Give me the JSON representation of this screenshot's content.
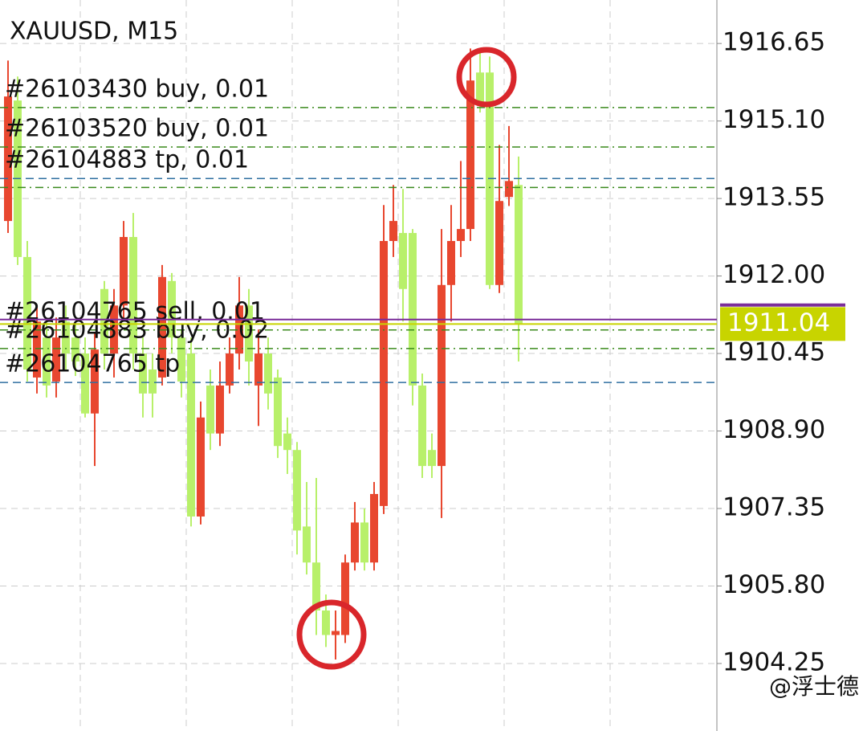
{
  "chart_data": {
    "type": "candlestick",
    "title": "XAUUSD, M15",
    "ylim": [
      1902.9,
      1917.52
    ],
    "yticks": [
      {
        "value": 1904.25,
        "label": "1904.25"
      },
      {
        "value": 1905.8,
        "label": "1905.80"
      },
      {
        "value": 1907.35,
        "label": "1907.35"
      },
      {
        "value": 1908.9,
        "label": "1908.90"
      },
      {
        "value": 1910.45,
        "label": "1910.45"
      },
      {
        "value": 1912.0,
        "label": "1912.00"
      },
      {
        "value": 1913.55,
        "label": "1913.55"
      },
      {
        "value": 1915.1,
        "label": "1915.10"
      },
      {
        "value": 1916.65,
        "label": "1916.65"
      }
    ],
    "grid": true,
    "up_color": "#e8472f",
    "down_color": "#b8f06a",
    "open": [
      1913.1,
      1915.51,
      1912.38,
      1909.97,
      1910.77,
      1909.89,
      1911.09,
      1910.77,
      1910.45,
      1909.25,
      1911.74,
      1910.45,
      1911.41,
      1912.78,
      1910.45,
      1910.13,
      1909.97,
      1911.9,
      1910.77,
      1910.45,
      1907.19,
      1909.81,
      1908.85,
      1909.81,
      1910.45,
      1911.41,
      1909.81,
      1910.45,
      1909.97,
      1908.85,
      1908.52,
      1906.99,
      1906.27,
      1905.31,
      1904.82,
      1904.82,
      1906.27,
      1907.07,
      1906.27,
      1907.4,
      1912.7,
      1912.86,
      1912.86,
      1909.81,
      1908.52,
      1908.2,
      1911.82,
      1912.7,
      1912.94,
      1916.07,
      1916.07,
      1911.82,
      1913.58,
      1913.82
    ],
    "high": [
      1916.31,
      1915.99,
      1912.7,
      1911.41,
      1911.09,
      1911.17,
      1911.41,
      1911.09,
      1910.77,
      1910.85,
      1911.9,
      1911.74,
      1913.1,
      1913.26,
      1910.77,
      1910.45,
      1912.22,
      1912.06,
      1910.93,
      1910.77,
      1909.49,
      1910.13,
      1910.29,
      1910.77,
      1911.98,
      1911.74,
      1910.93,
      1910.77,
      1910.13,
      1909.17,
      1908.68,
      1907.88,
      1907.96,
      1905.63,
      1905.31,
      1906.43,
      1907.48,
      1907.35,
      1907.88,
      1913.42,
      1913.82,
      1913.74,
      1912.94,
      1910.05,
      1908.85,
      1912.94,
      1913.42,
      1914.3,
      1916.55,
      1916.55,
      1916.39,
      1914.62,
      1915.0,
      1914.39
    ],
    "low": [
      1912.86,
      1912.22,
      1909.89,
      1909.65,
      1909.57,
      1909.57,
      1910.13,
      1910.0,
      1909.17,
      1908.2,
      1910.13,
      1909.97,
      1911.09,
      1910.13,
      1909.17,
      1909.17,
      1909.81,
      1910.45,
      1909.57,
      1906.99,
      1907.03,
      1908.52,
      1908.6,
      1909.65,
      1910.13,
      1909.81,
      1909.0,
      1909.33,
      1908.36,
      1908.04,
      1906.43,
      1906.03,
      1904.82,
      1904.58,
      1904.33,
      1904.66,
      1906.11,
      1906.11,
      1906.11,
      1907.24,
      1912.38,
      1911.09,
      1909.41,
      1907.96,
      1907.96,
      1907.16,
      1911.09,
      1912.38,
      1912.7,
      1915.27,
      1911.74,
      1911.66,
      1913.4,
      1910.29
    ],
    "close": [
      1915.59,
      1912.38,
      1910.13,
      1911.09,
      1909.81,
      1910.77,
      1910.45,
      1910.29,
      1909.25,
      1910.53,
      1910.45,
      1911.41,
      1912.78,
      1910.45,
      1909.65,
      1909.65,
      1911.98,
      1910.77,
      1909.89,
      1907.19,
      1909.17,
      1908.85,
      1909.81,
      1910.45,
      1911.41,
      1910.29,
      1910.45,
      1909.65,
      1908.6,
      1908.52,
      1906.91,
      1906.27,
      1905.31,
      1904.82,
      1904.9,
      1906.27,
      1907.07,
      1906.27,
      1907.64,
      1912.7,
      1913.1,
      1911.74,
      1909.81,
      1908.2,
      1908.2,
      1911.82,
      1912.7,
      1912.94,
      1915.91,
      1915.43,
      1911.82,
      1913.5,
      1913.9,
      1911.04
    ],
    "orders": [
      {
        "label": "#26103430 buy, 0.01",
        "price": 1915.37,
        "color": "#3a8a1c",
        "style": "dashdot"
      },
      {
        "label": "#26103520 buy, 0.01",
        "price": 1914.58,
        "color": "#3a8a1c",
        "style": "dashdot"
      },
      {
        "label": "#26104883 tp, 0.01",
        "price": 1913.95,
        "color": "#2f6fa0",
        "style": "dashed"
      },
      {
        "price": 1913.77,
        "color": "#3a8a1c",
        "style": "dashdot"
      },
      {
        "label": "#26104765 sell, 0.01",
        "price": 1910.92,
        "color": "#3a8a1c",
        "style": "dashdot"
      },
      {
        "label": "#26104883 buy, 0.02",
        "price": 1910.55,
        "color": "#3a8a1c",
        "style": "dashdot"
      },
      {
        "label": "#26104765 tp",
        "price": 1909.87,
        "color": "#2f6fa0",
        "style": "dashed"
      }
    ],
    "ask": 1911.13,
    "ask_color": "#7b2d9a",
    "bid": {
      "value": 1911.04,
      "label": "1911.04"
    },
    "bid_color": "#c8d400",
    "watermark": "@浮士德"
  }
}
